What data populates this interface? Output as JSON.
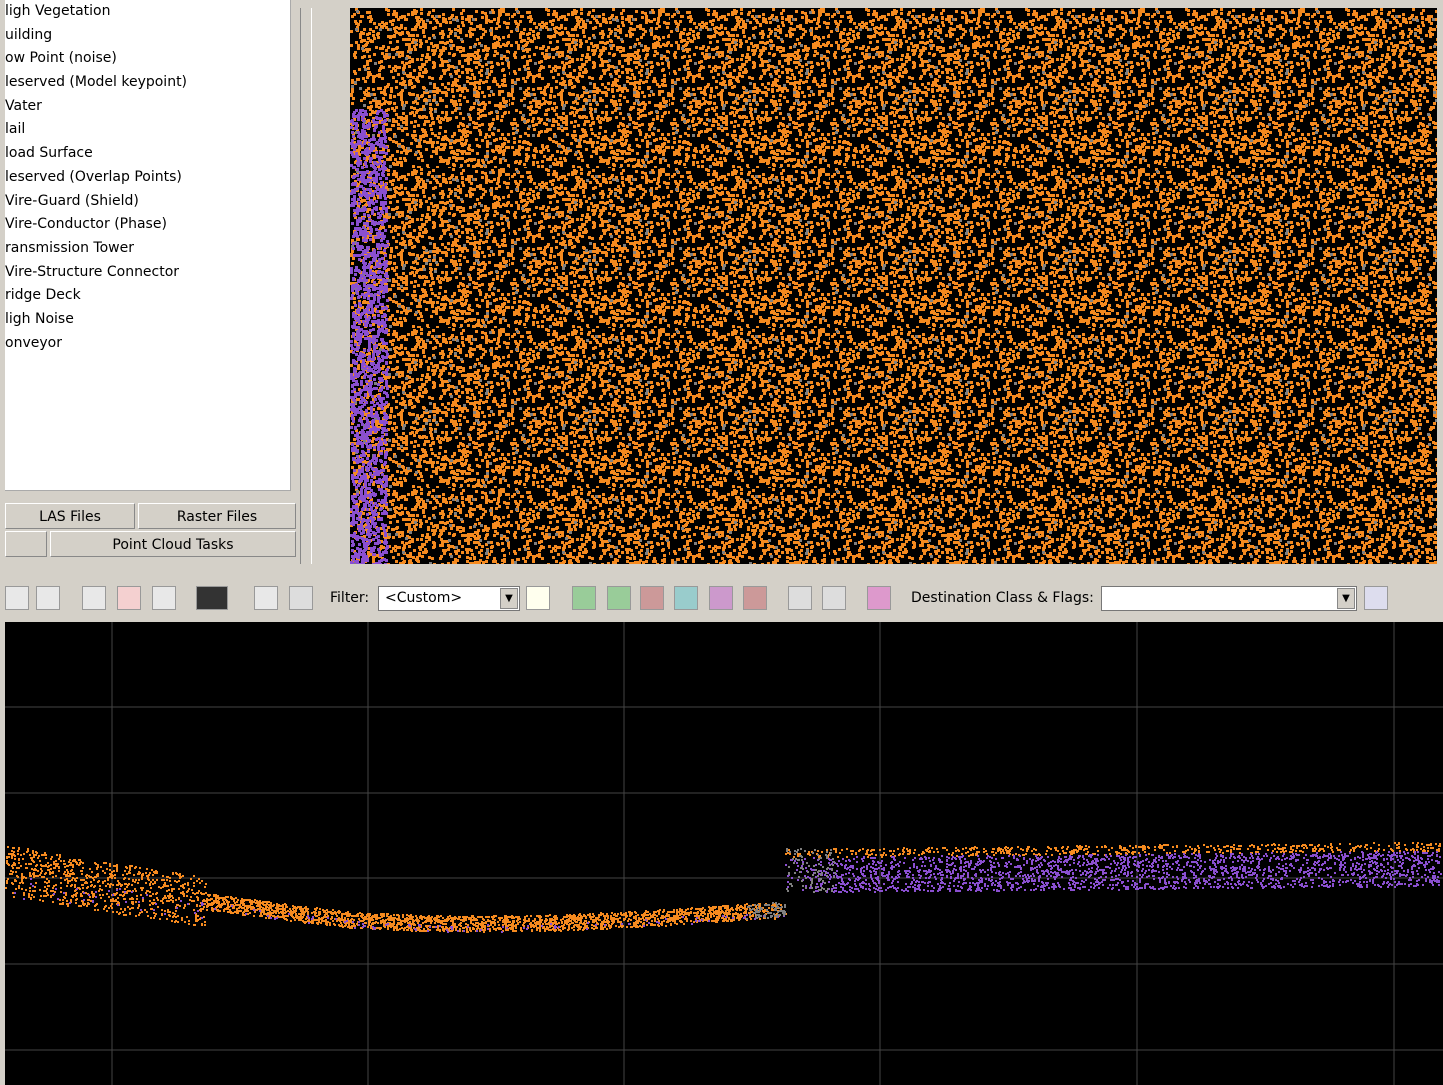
{
  "class_list": [
    "ligh Vegetation",
    "uilding",
    "ow Point (noise)",
    "leserved (Model keypoint)",
    "Vater",
    "lail",
    "load Surface",
    "leserved (Overlap Points)",
    "Vire-Guard (Shield)",
    "Vire-Conductor (Phase)",
    "ransmission Tower",
    "Vire-Structure Connector",
    "ridge Deck",
    "ligh Noise",
    "onveyor"
  ],
  "tabs": {
    "las_files": "LAS Files",
    "raster_files": "Raster Files",
    "point_cloud_tasks": "Point Cloud Tasks"
  },
  "toolbar": {
    "filter_label": "Filter:",
    "filter_value": "<Custom>",
    "destination_label": "Destination Class & Flags:"
  }
}
